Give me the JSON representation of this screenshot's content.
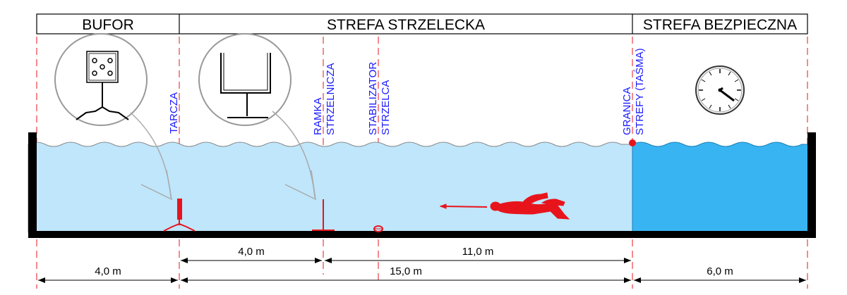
{
  "zones": {
    "buffer": "BUFOR",
    "shooting": "STREFA STRZELECKA",
    "safe": "STREFA BEZPIECZNA"
  },
  "labels": {
    "target": "TARCZA",
    "frame_line1": "RAMKA",
    "frame_line2": "STRZELNICZA",
    "stabilizer_line1": "STABILIZATOR",
    "stabilizer_line2": "STRZELCA",
    "boundary_line1": "GRANICA",
    "boundary_line2": "STREFY (TAŚMA)"
  },
  "dimensions": {
    "target_to_frame": "4,0 m",
    "frame_to_boundary": "11,0 m",
    "buffer": "4,0 m",
    "shooting_zone": "15,0 m",
    "safe_zone": "6,0 m"
  },
  "icons": {
    "target_detail": "target-icon",
    "frame_detail": "shooting-frame-icon",
    "clock": "clock-icon",
    "diver": "spearfisher-icon",
    "arrow": "leader-arrow-icon"
  },
  "colors": {
    "water": "#bfe6fb",
    "safe_water": "#38b4f2",
    "accent": "#e8141c",
    "label_blue": "#1a1aff",
    "wall": "#000000"
  }
}
